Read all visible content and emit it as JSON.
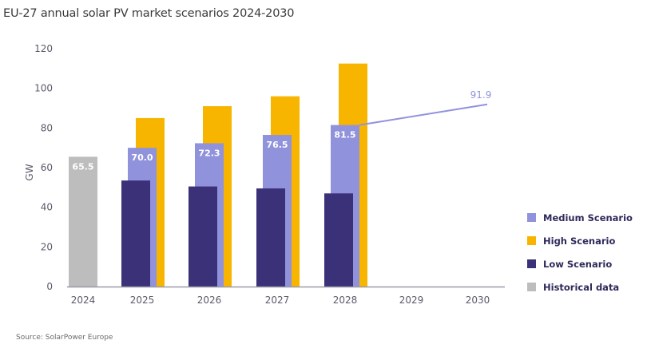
{
  "title": "EU-27 annual solar PV market scenarios 2024-2030",
  "source": "Source: SolarPower Europe",
  "colors": {
    "medium": "#9192dc",
    "high": "#f7b500",
    "low": "#3a3179",
    "historical": "#bdbdbd",
    "axis": "#9a9aa8",
    "line": "#9192dc"
  },
  "chart_data": {
    "type": "bar",
    "title": "EU-27 annual solar PV market scenarios 2024-2030",
    "xlabel": "",
    "ylabel": "GW",
    "ylim": [
      0,
      120
    ],
    "yticks": [
      "0",
      "20",
      "40",
      "60",
      "80",
      "100",
      "120"
    ],
    "categories": [
      "2024",
      "2025",
      "2026",
      "2027",
      "2028",
      "2029",
      "2030"
    ],
    "series": [
      {
        "name": "Historical data",
        "key": "historical",
        "values": [
          65.5,
          null,
          null,
          null,
          null,
          null,
          null
        ]
      },
      {
        "name": "Low Scenario",
        "key": "low",
        "values": [
          null,
          53.5,
          50.5,
          49.5,
          47,
          null,
          null
        ]
      },
      {
        "name": "Medium Scenario",
        "key": "medium",
        "values": [
          null,
          70.0,
          72.3,
          76.5,
          81.5,
          null,
          null
        ]
      },
      {
        "name": "High Scenario",
        "key": "high",
        "values": [
          null,
          85,
          91,
          96,
          112.5,
          null,
          null
        ]
      }
    ],
    "medium_trend_line": {
      "from": {
        "x": "2028",
        "y": 81.5
      },
      "to": {
        "x": "2030",
        "y": 91.9
      }
    },
    "data_labels": {
      "historical": [
        "65.5"
      ],
      "medium": [
        "70.0",
        "72.3",
        "76.5",
        "81.5"
      ],
      "trend_end": "91.9"
    },
    "legend": {
      "placement": "right",
      "entries": [
        "Medium Scenario",
        "High Scenario",
        "Low Scenario",
        "Historical data"
      ]
    },
    "grid": false
  }
}
